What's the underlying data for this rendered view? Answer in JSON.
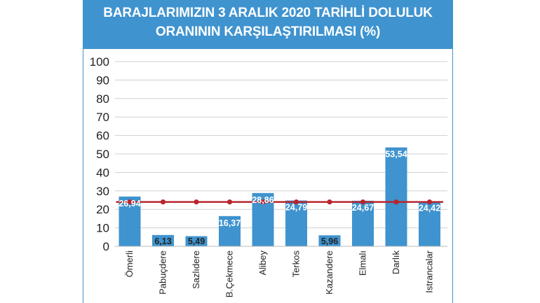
{
  "colors": {
    "header_bg": "#3f93cf",
    "bar": "#3f93cf",
    "average_line": "#b8262d",
    "grid": "#cfcfcf",
    "text": "#222222"
  },
  "header": {
    "title_line1": "BARAJLARIMIZIN 3 ARALIK 2020 TARİHLİ DOLULUK",
    "title_line2": "ORANININ KARŞILAŞTIRILMASI (%)"
  },
  "chart_data": {
    "type": "bar",
    "title": "BARAJLARIMIZIN 3 ARALIK 2020 TARİHLİ DOLULUK ORANININ KARŞILAŞTIRILMASI (%)",
    "categories": [
      "Ömerli",
      "Pabuçdere",
      "Sazlıdere",
      "B.Çekmece",
      "Alibey",
      "Terkos",
      "Kazandere",
      "Elmalı",
      "Darlık",
      "Istrancalar"
    ],
    "values": [
      26.94,
      6.13,
      5.49,
      16.37,
      28.86,
      24.79,
      5.96,
      24.67,
      53.54,
      24.42
    ],
    "value_labels": [
      "26,94",
      "6,13",
      "5,49",
      "16,37",
      "28,86",
      "24,79",
      "5,96",
      "24,67",
      "53,54",
      "24,42"
    ],
    "reference_line": {
      "value": 24.0
    },
    "ylim": [
      0,
      100
    ],
    "yticks": [
      0,
      10,
      20,
      30,
      40,
      50,
      60,
      70,
      80,
      90,
      100
    ],
    "grid": true,
    "xlabel": "",
    "ylabel": ""
  }
}
